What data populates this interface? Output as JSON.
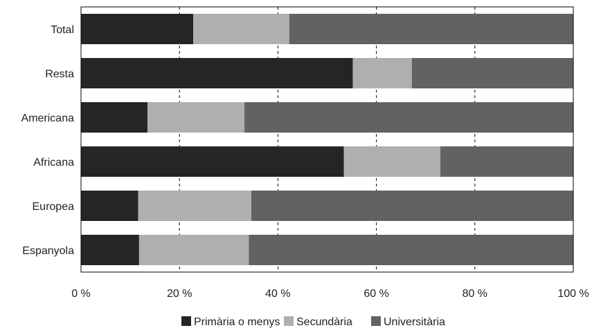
{
  "chart_data": {
    "type": "bar",
    "orientation": "horizontal",
    "stacked": true,
    "categories": [
      "Total",
      "Resta",
      "Americana",
      "Africana",
      "Europea",
      "Espanyola"
    ],
    "series": [
      {
        "name": "Primària o menys",
        "color": "#262424",
        "values": [
          22.8,
          55.2,
          13.5,
          53.4,
          11.6,
          11.8
        ]
      },
      {
        "name": "Secundària",
        "color": "#b0afaf",
        "values": [
          19.5,
          12.0,
          19.7,
          19.6,
          23.0,
          22.3
        ]
      },
      {
        "name": "Universitària",
        "color": "#636262",
        "values": [
          57.7,
          32.8,
          66.8,
          27.0,
          65.4,
          65.9
        ]
      }
    ],
    "xlim": [
      0,
      100
    ],
    "x_ticks": [
      "0 %",
      "20 %",
      "40 %",
      "60 %",
      "80 %",
      "100 %"
    ],
    "grid": "vertical dashed",
    "legend_position": "bottom"
  }
}
